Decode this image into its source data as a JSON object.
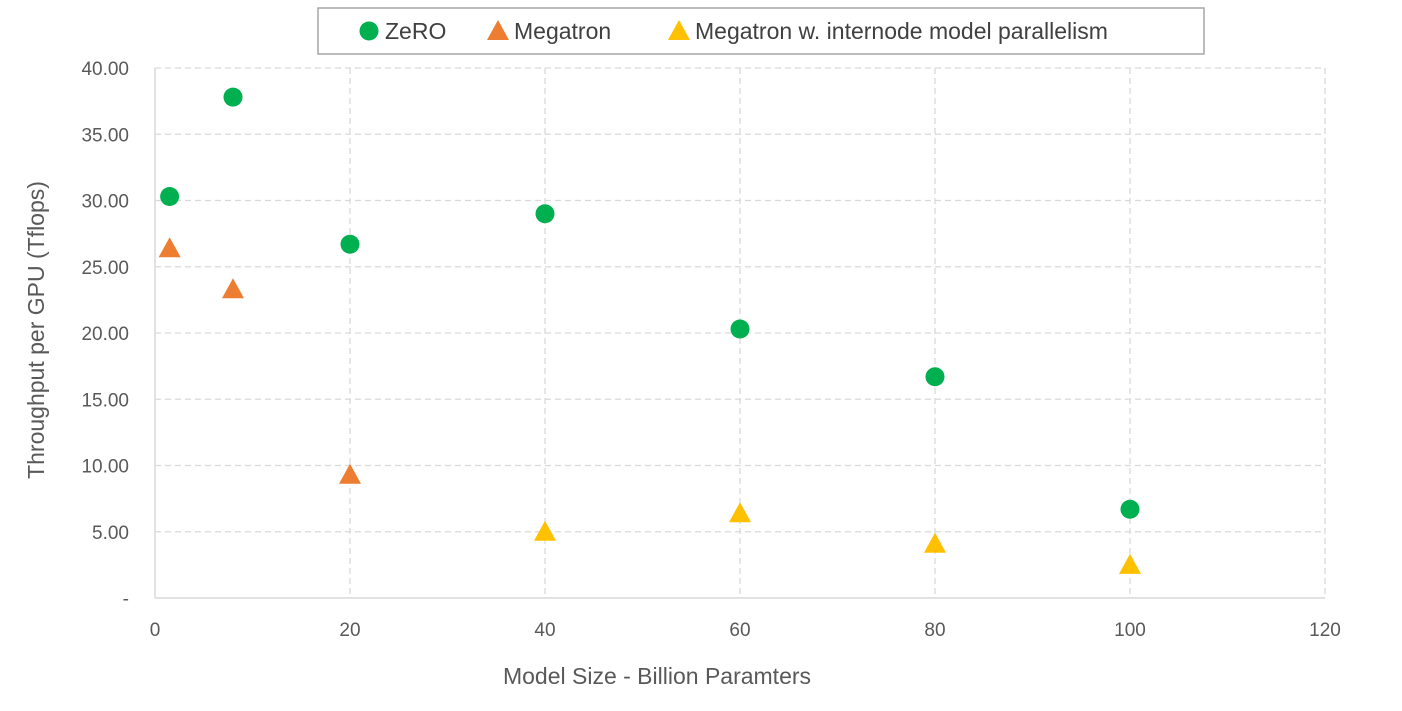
{
  "chart_data": {
    "type": "scatter",
    "title": "",
    "xlabel": "Model Size - Billion Paramters",
    "ylabel": "Throughput per GPU (Tflops)",
    "xlim": [
      0,
      120
    ],
    "ylim": [
      0,
      40
    ],
    "x_ticks": [
      "0",
      "20",
      "40",
      "60",
      "80",
      "100",
      "120"
    ],
    "y_ticks": [
      "-",
      "5.00",
      "10.00",
      "15.00",
      "20.00",
      "25.00",
      "30.00",
      "35.00",
      "40.00"
    ],
    "x_tick_values": [
      0,
      20,
      40,
      60,
      80,
      100,
      120
    ],
    "y_tick_values": [
      0,
      5,
      10,
      15,
      20,
      25,
      30,
      35,
      40
    ],
    "grid": true,
    "legend_position": "top",
    "series": [
      {
        "name": "ZeRO",
        "marker": "circle",
        "color": "#00B050",
        "points": [
          [
            1.5,
            30.3
          ],
          [
            8,
            37.8
          ],
          [
            20,
            26.7
          ],
          [
            40,
            29.0
          ],
          [
            60,
            20.3
          ],
          [
            80,
            16.7
          ],
          [
            100,
            6.7
          ]
        ]
      },
      {
        "name": "Megatron",
        "marker": "triangle",
        "color": "#ED7D31",
        "points": [
          [
            1.5,
            26.4
          ],
          [
            8,
            23.3
          ],
          [
            20,
            9.3
          ]
        ]
      },
      {
        "name": "Megatron w. internode model parallelism",
        "marker": "triangle",
        "color": "#FFC000",
        "points": [
          [
            40,
            5.0
          ],
          [
            60,
            6.4
          ],
          [
            80,
            4.1
          ],
          [
            100,
            2.5
          ]
        ]
      }
    ]
  }
}
